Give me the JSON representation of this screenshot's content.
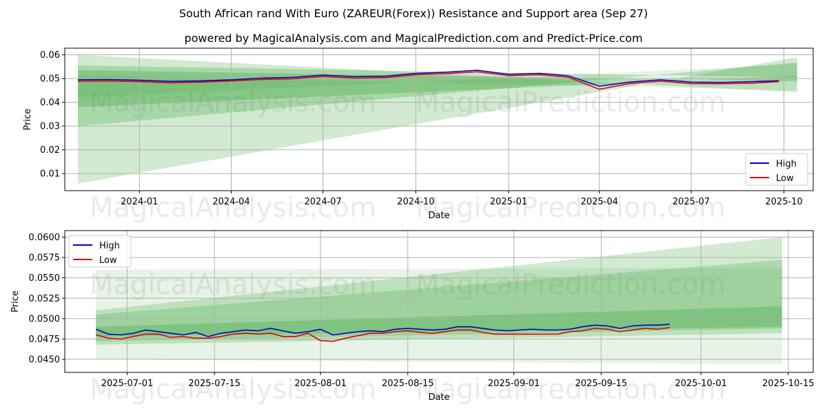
{
  "title_line1": "South African rand With Euro (ZAREUR(Forex)) Resistance and Support area (Sep 27)",
  "title_line2": "powered by MagicalAnalysis.com and MagicalPrediction.com and Predict-Price.com",
  "watermarks": [
    "MagicalAnalysis.com",
    "MagicalPrediction.com"
  ],
  "colors": {
    "high": "#0000cc",
    "low": "#e00000",
    "band": "#2e9e2e",
    "grid": "#b0b0b0"
  },
  "chart_data": [
    {
      "type": "line",
      "name": "top-chart",
      "xlabel": "Date",
      "ylabel": "Price",
      "x_start": "2023-11-01",
      "x_end": "2025-10-14",
      "xlim": [
        "2023-10-19",
        "2025-10-30"
      ],
      "ylim": [
        0.0028,
        0.0628
      ],
      "x_ticks": [
        {
          "date": "2024-01-01",
          "label": "2024-01"
        },
        {
          "date": "2024-04-01",
          "label": "2024-04"
        },
        {
          "date": "2024-07-01",
          "label": "2024-07"
        },
        {
          "date": "2024-10-01",
          "label": "2024-10"
        },
        {
          "date": "2025-01-01",
          "label": "2025-01"
        },
        {
          "date": "2025-04-01",
          "label": "2025-04"
        },
        {
          "date": "2025-07-01",
          "label": "2025-07"
        },
        {
          "date": "2025-10-01",
          "label": "2025-10"
        }
      ],
      "y_ticks": [
        0.01,
        0.02,
        0.03,
        0.04,
        0.05,
        0.06
      ],
      "y_tick_labels": [
        "0.01",
        "0.02",
        "0.03",
        "0.04",
        "0.05",
        "0.06"
      ],
      "legend": {
        "position": "lower-right",
        "entries": [
          "High",
          "Low"
        ]
      },
      "bands": [
        {
          "start": [
            0.06,
            0.0058
          ],
          "end": [
            0.0442,
            0.059
          ],
          "alpha": 0.22
        },
        {
          "start": [
            0.0555,
            0.03
          ],
          "end": [
            0.0505,
            0.0568
          ],
          "alpha": 0.25
        },
        {
          "start": [
            0.0535,
            0.038
          ],
          "end": [
            0.0488,
            0.0512
          ],
          "alpha": 0.28
        },
        {
          "start": [
            0.0515,
            0.042
          ],
          "end": [
            0.045,
            0.056
          ],
          "alpha": 0.12
        }
      ],
      "series": [
        {
          "name": "High",
          "dates": [
            "2023-11-01",
            "2023-12-01",
            "2024-01-01",
            "2024-02-01",
            "2024-03-01",
            "2024-04-01",
            "2024-05-01",
            "2024-06-01",
            "2024-07-01",
            "2024-08-01",
            "2024-09-01",
            "2024-10-01",
            "2024-11-01",
            "2024-12-01",
            "2025-01-01",
            "2025-02-01",
            "2025-03-01",
            "2025-04-01",
            "2025-05-01",
            "2025-06-01",
            "2025-07-01",
            "2025-08-01",
            "2025-09-01",
            "2025-09-26"
          ],
          "values": [
            0.0495,
            0.0496,
            0.0493,
            0.0488,
            0.049,
            0.0495,
            0.0502,
            0.0505,
            0.0515,
            0.0508,
            0.051,
            0.0522,
            0.0527,
            0.0535,
            0.0518,
            0.0522,
            0.0512,
            0.0468,
            0.0485,
            0.0495,
            0.0485,
            0.0484,
            0.0487,
            0.0491
          ]
        },
        {
          "name": "Low",
          "dates": [
            "2023-11-01",
            "2023-12-01",
            "2024-01-01",
            "2024-02-01",
            "2024-03-01",
            "2024-04-01",
            "2024-05-01",
            "2024-06-01",
            "2024-07-01",
            "2024-08-01",
            "2024-09-01",
            "2024-10-01",
            "2024-11-01",
            "2024-12-01",
            "2025-01-01",
            "2025-02-01",
            "2025-03-01",
            "2025-04-01",
            "2025-05-01",
            "2025-06-01",
            "2025-07-01",
            "2025-08-01",
            "2025-09-01",
            "2025-09-26"
          ],
          "values": [
            0.0489,
            0.049,
            0.0487,
            0.0482,
            0.0485,
            0.049,
            0.0496,
            0.0499,
            0.0509,
            0.0502,
            0.0504,
            0.0516,
            0.0521,
            0.0529,
            0.0512,
            0.0516,
            0.0506,
            0.0455,
            0.0479,
            0.0489,
            0.0479,
            0.0478,
            0.0481,
            0.0487
          ]
        }
      ]
    },
    {
      "type": "line",
      "name": "bottom-chart",
      "xlabel": "Date",
      "ylabel": "Price",
      "x_start": "2025-06-26",
      "x_end": "2025-10-14",
      "xlim": [
        "2025-06-21",
        "2025-10-19"
      ],
      "ylim": [
        0.0434,
        0.0608
      ],
      "x_ticks": [
        {
          "date": "2025-07-01",
          "label": "2025-07-01"
        },
        {
          "date": "2025-07-15",
          "label": "2025-07-15"
        },
        {
          "date": "2025-08-01",
          "label": "2025-08-01"
        },
        {
          "date": "2025-08-15",
          "label": "2025-08-15"
        },
        {
          "date": "2025-09-01",
          "label": "2025-09-01"
        },
        {
          "date": "2025-09-15",
          "label": "2025-09-15"
        },
        {
          "date": "2025-10-01",
          "label": "2025-10-01"
        },
        {
          "date": "2025-10-15",
          "label": "2025-10-15"
        }
      ],
      "y_ticks": [
        0.045,
        0.0475,
        0.05,
        0.0525,
        0.055,
        0.0575,
        0.06
      ],
      "y_tick_labels": [
        "0.0450",
        "0.0475",
        "0.0500",
        "0.0525",
        "0.0550",
        "0.0575",
        "0.0600"
      ],
      "legend": {
        "position": "upper-left",
        "entries": [
          "High",
          "Low"
        ]
      },
      "bands": [
        {
          "start": [
            0.056,
            0.045
          ],
          "end": [
            0.0562,
            0.0444
          ],
          "alpha": 0.12
        },
        {
          "start": [
            0.051,
            0.0468
          ],
          "end": [
            0.06,
            0.0482
          ],
          "alpha": 0.22
        },
        {
          "start": [
            0.0505,
            0.0472
          ],
          "end": [
            0.0572,
            0.0488
          ],
          "alpha": 0.22
        },
        {
          "start": [
            0.049,
            0.0478
          ],
          "end": [
            0.0515,
            0.049
          ],
          "alpha": 0.28
        }
      ],
      "series": [
        {
          "name": "High",
          "dates": [
            "2025-06-26",
            "2025-06-28",
            "2025-06-30",
            "2025-07-02",
            "2025-07-04",
            "2025-07-06",
            "2025-07-08",
            "2025-07-10",
            "2025-07-12",
            "2025-07-14",
            "2025-07-16",
            "2025-07-18",
            "2025-07-20",
            "2025-07-22",
            "2025-07-24",
            "2025-07-26",
            "2025-07-28",
            "2025-07-30",
            "2025-08-01",
            "2025-08-03",
            "2025-08-05",
            "2025-08-07",
            "2025-08-09",
            "2025-08-11",
            "2025-08-13",
            "2025-08-15",
            "2025-08-17",
            "2025-08-19",
            "2025-08-21",
            "2025-08-23",
            "2025-08-25",
            "2025-08-27",
            "2025-08-29",
            "2025-08-31",
            "2025-09-02",
            "2025-09-04",
            "2025-09-06",
            "2025-09-08",
            "2025-09-10",
            "2025-09-12",
            "2025-09-14",
            "2025-09-16",
            "2025-09-18",
            "2025-09-20",
            "2025-09-22",
            "2025-09-24",
            "2025-09-26"
          ],
          "values": [
            0.0487,
            0.0481,
            0.048,
            0.0482,
            0.0486,
            0.0484,
            0.0482,
            0.048,
            0.0483,
            0.0478,
            0.0482,
            0.0484,
            0.0486,
            0.0485,
            0.0488,
            0.0485,
            0.0482,
            0.0484,
            0.0487,
            0.048,
            0.0482,
            0.0484,
            0.0485,
            0.0484,
            0.0487,
            0.0488,
            0.0487,
            0.0486,
            0.0487,
            0.049,
            0.049,
            0.0488,
            0.0486,
            0.0485,
            0.0486,
            0.0487,
            0.0486,
            0.0486,
            0.0487,
            0.049,
            0.0492,
            0.0491,
            0.0488,
            0.0491,
            0.0492,
            0.0492,
            0.0493
          ]
        },
        {
          "name": "Low",
          "dates": [
            "2025-06-26",
            "2025-06-28",
            "2025-06-30",
            "2025-07-02",
            "2025-07-04",
            "2025-07-06",
            "2025-07-08",
            "2025-07-10",
            "2025-07-12",
            "2025-07-14",
            "2025-07-16",
            "2025-07-18",
            "2025-07-20",
            "2025-07-22",
            "2025-07-24",
            "2025-07-26",
            "2025-07-28",
            "2025-07-30",
            "2025-08-01",
            "2025-08-03",
            "2025-08-05",
            "2025-08-07",
            "2025-08-09",
            "2025-08-11",
            "2025-08-13",
            "2025-08-15",
            "2025-08-17",
            "2025-08-19",
            "2025-08-21",
            "2025-08-23",
            "2025-08-25",
            "2025-08-27",
            "2025-08-29",
            "2025-08-31",
            "2025-09-02",
            "2025-09-04",
            "2025-09-06",
            "2025-09-08",
            "2025-09-10",
            "2025-09-12",
            "2025-09-14",
            "2025-09-16",
            "2025-09-18",
            "2025-09-20",
            "2025-09-22",
            "2025-09-24",
            "2025-09-26"
          ],
          "values": [
            0.048,
            0.0476,
            0.0475,
            0.0478,
            0.0481,
            0.0481,
            0.0477,
            0.0478,
            0.0476,
            0.0476,
            0.0478,
            0.0481,
            0.0482,
            0.0481,
            0.0482,
            0.0478,
            0.0478,
            0.0482,
            0.0473,
            0.0472,
            0.0476,
            0.0479,
            0.0482,
            0.0482,
            0.0484,
            0.0485,
            0.0483,
            0.0482,
            0.0484,
            0.0486,
            0.0486,
            0.0483,
            0.0481,
            0.0481,
            0.0481,
            0.0481,
            0.0481,
            0.0481,
            0.0484,
            0.0485,
            0.0488,
            0.0487,
            0.0484,
            0.0486,
            0.0488,
            0.0487,
            0.0489
          ]
        }
      ]
    }
  ]
}
